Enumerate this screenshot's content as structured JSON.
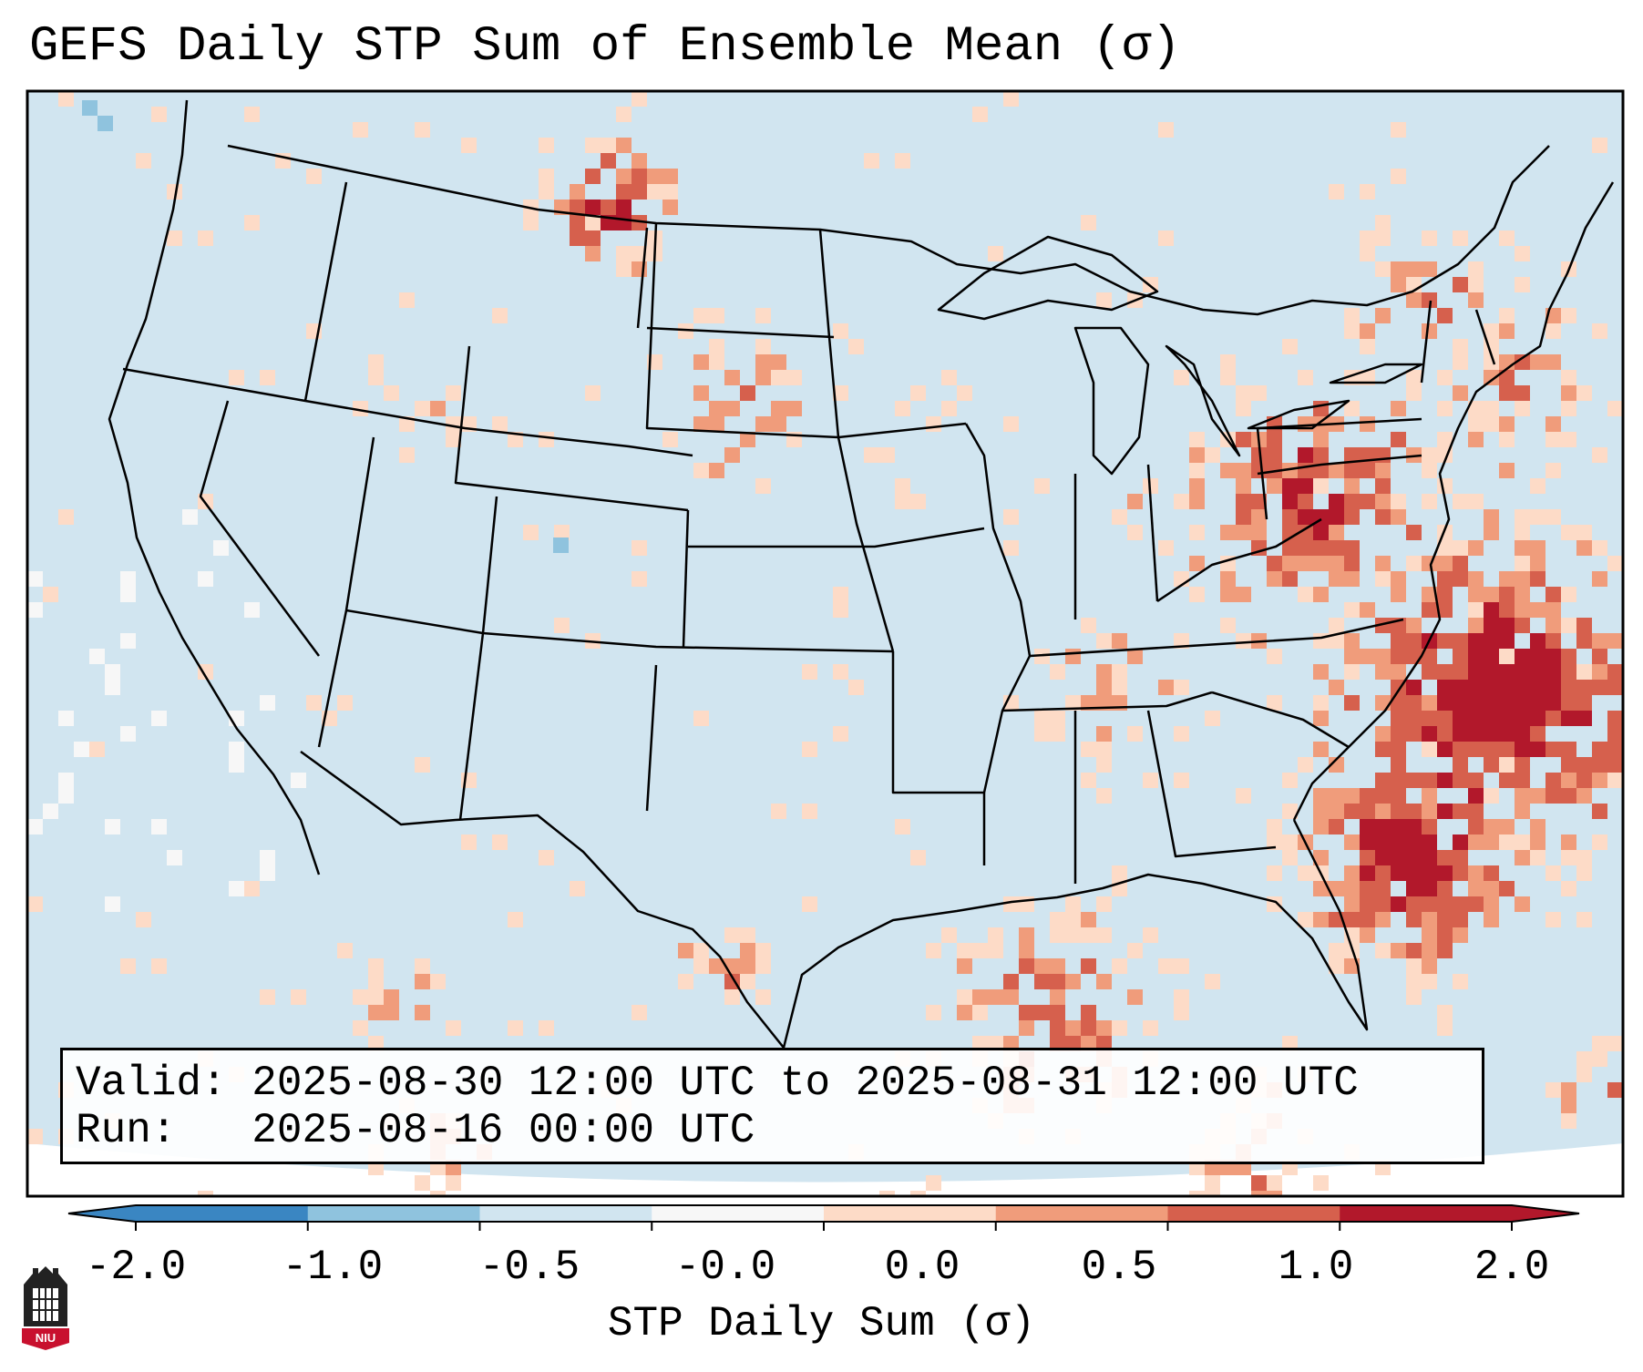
{
  "title": "GEFS Daily STP Sum of Ensemble Mean (σ)",
  "info": {
    "valid_label": "Valid:",
    "valid_value": "2025-08-30 12:00 UTC to 2025-08-31 12:00 UTC",
    "run_label": "Run:",
    "run_value": "2025-08-16 00:00 UTC"
  },
  "colorbar": {
    "label": "STP Daily Sum (σ)",
    "ticks": [
      "-2.0",
      "-1.0",
      "-0.5",
      "-0.0",
      "0.0",
      "0.5",
      "1.0",
      "2.0"
    ],
    "colors": [
      "#3a86c2",
      "#8fc3de",
      "#d1e5f0",
      "#f7f7f7",
      "#fddbc7",
      "#f09c7b",
      "#d6604d",
      "#b2182b"
    ]
  },
  "map": {
    "background_color": "#d1e5f0",
    "region": "Contiguous United States",
    "field": "STP daily sum anomaly"
  },
  "logo": {
    "text": "NIU"
  }
}
